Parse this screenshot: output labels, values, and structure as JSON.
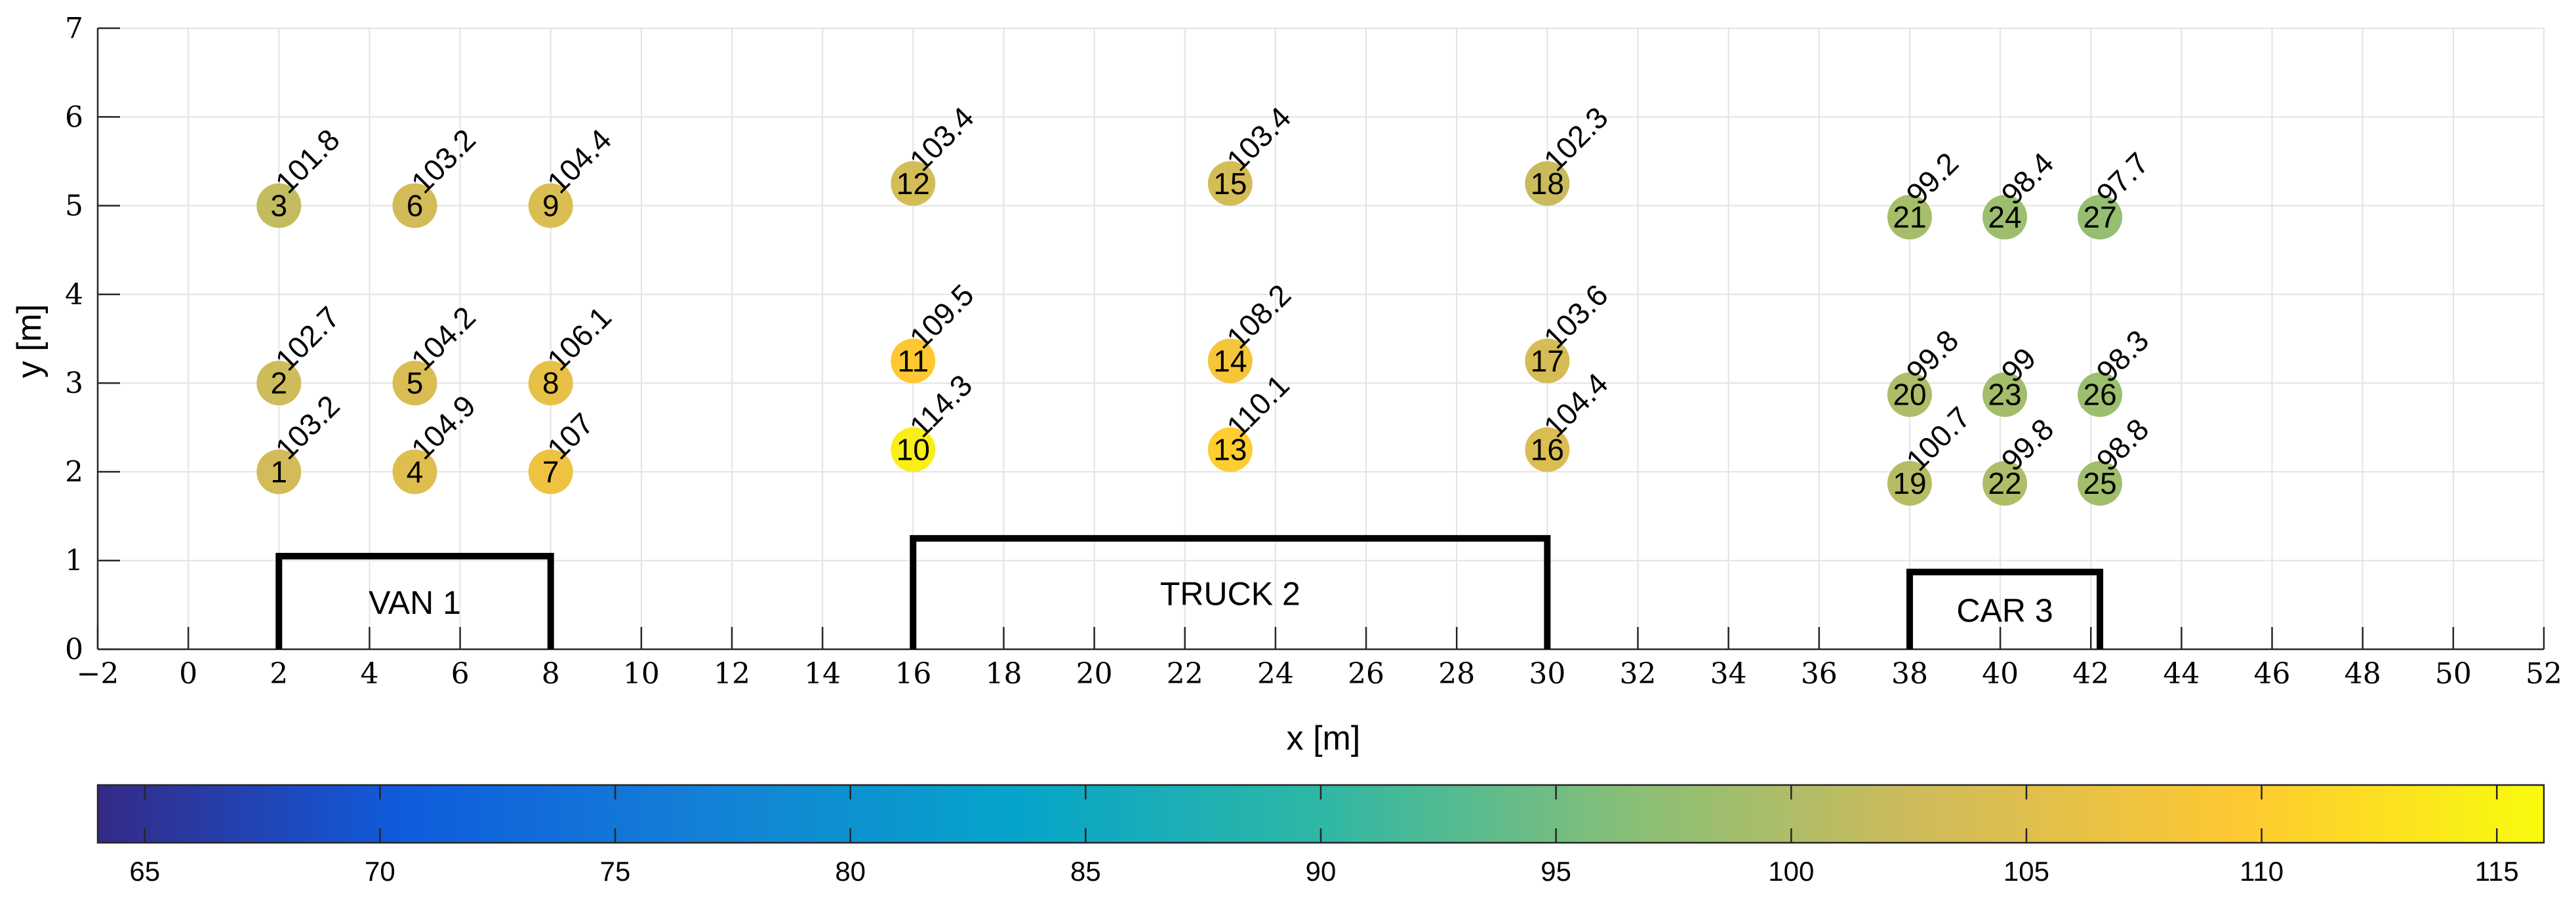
{
  "chart_data": {
    "type": "scatter",
    "xlabel": "x [m]",
    "ylabel": "y [m]",
    "xlim": [
      -2,
      52
    ],
    "ylim": [
      0,
      7
    ],
    "xticks": [
      -2,
      0,
      2,
      4,
      6,
      8,
      10,
      12,
      14,
      16,
      18,
      20,
      22,
      24,
      26,
      28,
      30,
      32,
      34,
      36,
      38,
      40,
      42,
      44,
      46,
      48,
      50,
      52
    ],
    "xtick_labels": [
      "−2",
      "0",
      "2",
      "4",
      "6",
      "8",
      "10",
      "12",
      "14",
      "16",
      "18",
      "20",
      "22",
      "24",
      "26",
      "28",
      "30",
      "32",
      "34",
      "36",
      "38",
      "40",
      "42",
      "44",
      "46",
      "48",
      "50",
      "52"
    ],
    "yticks": [
      0,
      1,
      2,
      3,
      4,
      5,
      6,
      7
    ],
    "ytick_labels": [
      "0",
      "1",
      "2",
      "3",
      "4",
      "5",
      "6",
      "7"
    ],
    "grid": true,
    "colorbar": {
      "range": [
        64,
        116
      ],
      "ticks": [
        65,
        70,
        75,
        80,
        85,
        90,
        95,
        100,
        105,
        110,
        115
      ],
      "tick_labels": [
        "65",
        "70",
        "75",
        "80",
        "85",
        "90",
        "95",
        "100",
        "105",
        "110",
        "115"
      ],
      "colormap": "parula",
      "stops": [
        "#352a87",
        "#0f5cdd",
        "#1481d6",
        "#06a4ca",
        "#2eb7a4",
        "#87bf77",
        "#d1bb59",
        "#fec832",
        "#f9fb0e"
      ]
    },
    "vehicles": [
      {
        "name": "VAN 1",
        "x0": 2,
        "x1": 8,
        "height": 1.05
      },
      {
        "name": "TRUCK 2",
        "x0": 16,
        "x1": 30,
        "height": 1.25
      },
      {
        "name": "CAR 3",
        "x0": 38,
        "x1": 42.2,
        "height": 0.87
      }
    ],
    "points": [
      {
        "id": "1",
        "x": 2,
        "y": 2,
        "value": 103.2,
        "value_label": "103.2"
      },
      {
        "id": "2",
        "x": 2,
        "y": 3,
        "value": 102.7,
        "value_label": "102.7"
      },
      {
        "id": "3",
        "x": 2,
        "y": 5,
        "value": 101.8,
        "value_label": "101.8"
      },
      {
        "id": "4",
        "x": 5,
        "y": 2,
        "value": 104.9,
        "value_label": "104.9"
      },
      {
        "id": "5",
        "x": 5,
        "y": 3,
        "value": 104.2,
        "value_label": "104.2"
      },
      {
        "id": "6",
        "x": 5,
        "y": 5,
        "value": 103.2,
        "value_label": "103.2"
      },
      {
        "id": "7",
        "x": 8,
        "y": 2,
        "value": 107,
        "value_label": "107"
      },
      {
        "id": "8",
        "x": 8,
        "y": 3,
        "value": 106.1,
        "value_label": "106.1"
      },
      {
        "id": "9",
        "x": 8,
        "y": 5,
        "value": 104.4,
        "value_label": "104.4"
      },
      {
        "id": "10",
        "x": 16,
        "y": 2.25,
        "value": 114.3,
        "value_label": "114.3"
      },
      {
        "id": "11",
        "x": 16,
        "y": 3.25,
        "value": 109.5,
        "value_label": "109.5"
      },
      {
        "id": "12",
        "x": 16,
        "y": 5.25,
        "value": 103.4,
        "value_label": "103.4"
      },
      {
        "id": "13",
        "x": 23,
        "y": 2.25,
        "value": 110.1,
        "value_label": "110.1"
      },
      {
        "id": "14",
        "x": 23,
        "y": 3.25,
        "value": 108.2,
        "value_label": "108.2"
      },
      {
        "id": "15",
        "x": 23,
        "y": 5.25,
        "value": 103.4,
        "value_label": "103.4"
      },
      {
        "id": "16",
        "x": 30,
        "y": 2.25,
        "value": 104.4,
        "value_label": "104.4"
      },
      {
        "id": "17",
        "x": 30,
        "y": 3.25,
        "value": 103.6,
        "value_label": "103.6"
      },
      {
        "id": "18",
        "x": 30,
        "y": 5.25,
        "value": 102.3,
        "value_label": "102.3"
      },
      {
        "id": "19",
        "x": 38,
        "y": 1.87,
        "value": 100.7,
        "value_label": "100.7"
      },
      {
        "id": "20",
        "x": 38,
        "y": 2.87,
        "value": 99.8,
        "value_label": "99.8"
      },
      {
        "id": "21",
        "x": 38,
        "y": 4.87,
        "value": 99.2,
        "value_label": "99.2"
      },
      {
        "id": "22",
        "x": 40.1,
        "y": 1.87,
        "value": 99.8,
        "value_label": "99.8"
      },
      {
        "id": "23",
        "x": 40.1,
        "y": 2.87,
        "value": 99,
        "value_label": "99"
      },
      {
        "id": "24",
        "x": 40.1,
        "y": 4.87,
        "value": 98.4,
        "value_label": "98.4"
      },
      {
        "id": "25",
        "x": 42.2,
        "y": 1.87,
        "value": 98.8,
        "value_label": "98.8"
      },
      {
        "id": "26",
        "x": 42.2,
        "y": 2.87,
        "value": 98.3,
        "value_label": "98.3"
      },
      {
        "id": "27",
        "x": 42.2,
        "y": 4.87,
        "value": 97.7,
        "value_label": "97.7"
      }
    ]
  }
}
